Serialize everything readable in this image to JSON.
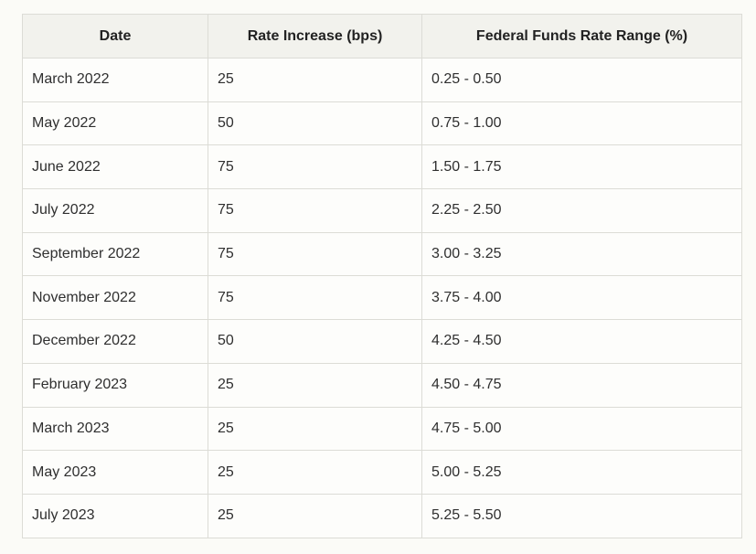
{
  "table": {
    "headers": [
      "Date",
      "Rate Increase (bps)",
      "Federal Funds Rate Range (%)"
    ],
    "rows": [
      [
        "March 2022",
        "25",
        "0.25 - 0.50"
      ],
      [
        "May 2022",
        "50",
        "0.75 - 1.00"
      ],
      [
        "June 2022",
        "75",
        "1.50 - 1.75"
      ],
      [
        "July 2022",
        "75",
        "2.25 - 2.50"
      ],
      [
        "September 2022",
        "75",
        "3.00 - 3.25"
      ],
      [
        "November 2022",
        "75",
        "3.75 - 4.00"
      ],
      [
        "December 2022",
        "50",
        "4.25 - 4.50"
      ],
      [
        "February 2023",
        "25",
        "4.50 - 4.75"
      ],
      [
        "March 2023",
        "25",
        "4.75 - 5.00"
      ],
      [
        "May 2023",
        "25",
        "5.00 - 5.25"
      ],
      [
        "July 2023",
        "25",
        "5.25 - 5.50"
      ]
    ]
  }
}
